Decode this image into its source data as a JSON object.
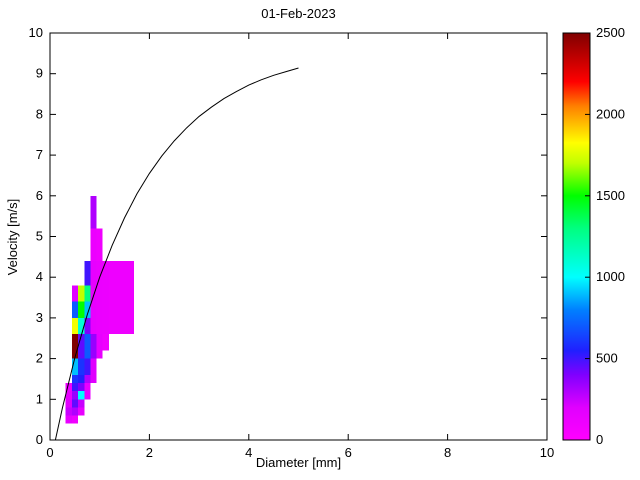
{
  "chart_data": {
    "type": "heatmap",
    "title": "01-Feb-2023",
    "xlabel": "Diameter [mm]",
    "ylabel": "Velocity [m/s]",
    "xlim": [
      0,
      10
    ],
    "ylim": [
      0,
      10
    ],
    "xticks": [
      0,
      2,
      4,
      6,
      8,
      10
    ],
    "yticks": [
      0,
      1,
      2,
      3,
      4,
      5,
      6,
      7,
      8,
      9,
      10
    ],
    "grid": false,
    "legend": "none",
    "colorbar": {
      "min": 0,
      "max": 2500,
      "ticks": [
        0,
        500,
        1000,
        1500,
        2000,
        2500
      ],
      "position": "right"
    },
    "colormap_stops": [
      [
        0.0,
        "#ff00ff"
      ],
      [
        0.08,
        "#e000ff"
      ],
      [
        0.16,
        "#8000ff"
      ],
      [
        0.22,
        "#2020ff"
      ],
      [
        0.32,
        "#0080ff"
      ],
      [
        0.4,
        "#00ffff"
      ],
      [
        0.52,
        "#00ff80"
      ],
      [
        0.6,
        "#00ff00"
      ],
      [
        0.68,
        "#c0ff00"
      ],
      [
        0.73,
        "#ffff00"
      ],
      [
        0.82,
        "#ff8000"
      ],
      [
        0.88,
        "#ff0000"
      ],
      [
        1.0,
        "#800000"
      ]
    ],
    "cells": [
      {
        "d": [
          0.31,
          0.44
        ],
        "v": [
          0.4,
          0.6
        ],
        "value": 150
      },
      {
        "d": [
          0.31,
          0.44
        ],
        "v": [
          0.6,
          0.8
        ],
        "value": 250
      },
      {
        "d": [
          0.31,
          0.44
        ],
        "v": [
          0.8,
          1.0
        ],
        "value": 200
      },
      {
        "d": [
          0.31,
          0.44
        ],
        "v": [
          1.0,
          1.2
        ],
        "value": 150
      },
      {
        "d": [
          0.31,
          0.44
        ],
        "v": [
          1.2,
          1.4
        ],
        "value": 100
      },
      {
        "d": [
          0.44,
          0.56
        ],
        "v": [
          0.4,
          0.6
        ],
        "value": 100
      },
      {
        "d": [
          0.44,
          0.56
        ],
        "v": [
          0.6,
          0.8
        ],
        "value": 300
      },
      {
        "d": [
          0.44,
          0.56
        ],
        "v": [
          0.8,
          1.0
        ],
        "value": 450
      },
      {
        "d": [
          0.44,
          0.56
        ],
        "v": [
          1.0,
          1.2
        ],
        "value": 350
      },
      {
        "d": [
          0.44,
          0.56
        ],
        "v": [
          1.2,
          1.4
        ],
        "value": 500
      },
      {
        "d": [
          0.44,
          0.56
        ],
        "v": [
          1.4,
          1.6
        ],
        "value": 600
      },
      {
        "d": [
          0.44,
          0.56
        ],
        "v": [
          1.6,
          2.0
        ],
        "value": 900
      },
      {
        "d": [
          0.44,
          0.56
        ],
        "v": [
          2.0,
          2.6
        ],
        "value": 2500
      },
      {
        "d": [
          0.44,
          0.56
        ],
        "v": [
          2.6,
          3.0
        ],
        "value": 1800
      },
      {
        "d": [
          0.44,
          0.56
        ],
        "v": [
          3.0,
          3.4
        ],
        "value": 700
      },
      {
        "d": [
          0.44,
          0.56
        ],
        "v": [
          3.4,
          3.8
        ],
        "value": 200
      },
      {
        "d": [
          0.56,
          0.69
        ],
        "v": [
          0.6,
          0.8
        ],
        "value": 150
      },
      {
        "d": [
          0.56,
          0.69
        ],
        "v": [
          0.8,
          1.0
        ],
        "value": 250
      },
      {
        "d": [
          0.56,
          0.69
        ],
        "v": [
          1.0,
          1.2
        ],
        "value": 1000
      },
      {
        "d": [
          0.56,
          0.69
        ],
        "v": [
          1.2,
          1.4
        ],
        "value": 400
      },
      {
        "d": [
          0.56,
          0.69
        ],
        "v": [
          1.4,
          1.6
        ],
        "value": 550
      },
      {
        "d": [
          0.56,
          0.69
        ],
        "v": [
          1.6,
          2.0
        ],
        "value": 600
      },
      {
        "d": [
          0.56,
          0.69
        ],
        "v": [
          2.0,
          2.6
        ],
        "value": 450
      },
      {
        "d": [
          0.56,
          0.69
        ],
        "v": [
          2.6,
          3.0
        ],
        "value": 1100
      },
      {
        "d": [
          0.56,
          0.69
        ],
        "v": [
          3.0,
          3.4
        ],
        "value": 1500
      },
      {
        "d": [
          0.56,
          0.69
        ],
        "v": [
          3.4,
          3.8
        ],
        "value": 1700
      },
      {
        "d": [
          0.69,
          0.81
        ],
        "v": [
          1.0,
          1.4
        ],
        "value": 150
      },
      {
        "d": [
          0.69,
          0.81
        ],
        "v": [
          1.4,
          1.6
        ],
        "value": 300
      },
      {
        "d": [
          0.69,
          0.81
        ],
        "v": [
          1.6,
          2.0
        ],
        "value": 500
      },
      {
        "d": [
          0.69,
          0.81
        ],
        "v": [
          2.0,
          2.6
        ],
        "value": 700
      },
      {
        "d": [
          0.69,
          0.81
        ],
        "v": [
          2.6,
          3.0
        ],
        "value": 400
      },
      {
        "d": [
          0.69,
          0.81
        ],
        "v": [
          3.0,
          3.4
        ],
        "value": 900
      },
      {
        "d": [
          0.69,
          0.81
        ],
        "v": [
          3.4,
          3.8
        ],
        "value": 1300
      },
      {
        "d": [
          0.69,
          0.81
        ],
        "v": [
          3.8,
          4.4
        ],
        "value": 500
      },
      {
        "d": [
          0.81,
          0.94
        ],
        "v": [
          1.4,
          2.0
        ],
        "value": 200
      },
      {
        "d": [
          0.81,
          0.94
        ],
        "v": [
          2.0,
          2.6
        ],
        "value": 350
      },
      {
        "d": [
          0.81,
          0.94
        ],
        "v": [
          2.6,
          4.4
        ],
        "value": 150
      },
      {
        "d": [
          0.81,
          0.94
        ],
        "v": [
          4.4,
          5.2
        ],
        "value": 120
      },
      {
        "d": [
          0.81,
          0.94
        ],
        "v": [
          5.2,
          6.0
        ],
        "value": 300
      },
      {
        "d": [
          0.94,
          1.06
        ],
        "v": [
          2.0,
          2.6
        ],
        "value": 150
      },
      {
        "d": [
          0.94,
          1.06
        ],
        "v": [
          2.6,
          4.4
        ],
        "value": 130
      },
      {
        "d": [
          0.94,
          1.06
        ],
        "v": [
          4.4,
          5.2
        ],
        "value": 100
      },
      {
        "d": [
          1.06,
          1.19
        ],
        "v": [
          2.2,
          2.6
        ],
        "value": 100
      },
      {
        "d": [
          1.06,
          1.19
        ],
        "v": [
          2.6,
          4.4
        ],
        "value": 120
      },
      {
        "d": [
          1.19,
          1.69
        ],
        "v": [
          2.6,
          4.4
        ],
        "value": 110
      }
    ],
    "curve": {
      "name": "terminal-velocity-curve",
      "color": "#000000",
      "points": [
        [
          0.11,
          0.01
        ],
        [
          0.25,
          0.79
        ],
        [
          0.5,
          2.02
        ],
        [
          0.75,
          3.08
        ],
        [
          1.0,
          4.0
        ],
        [
          1.25,
          4.78
        ],
        [
          1.5,
          5.46
        ],
        [
          1.75,
          6.05
        ],
        [
          2.0,
          6.55
        ],
        [
          2.25,
          6.98
        ],
        [
          2.5,
          7.35
        ],
        [
          2.75,
          7.67
        ],
        [
          3.0,
          7.95
        ],
        [
          3.25,
          8.18
        ],
        [
          3.5,
          8.39
        ],
        [
          3.75,
          8.56
        ],
        [
          4.0,
          8.72
        ],
        [
          4.25,
          8.85
        ],
        [
          4.5,
          8.96
        ],
        [
          4.75,
          9.05
        ],
        [
          5.0,
          9.14
        ]
      ]
    }
  }
}
